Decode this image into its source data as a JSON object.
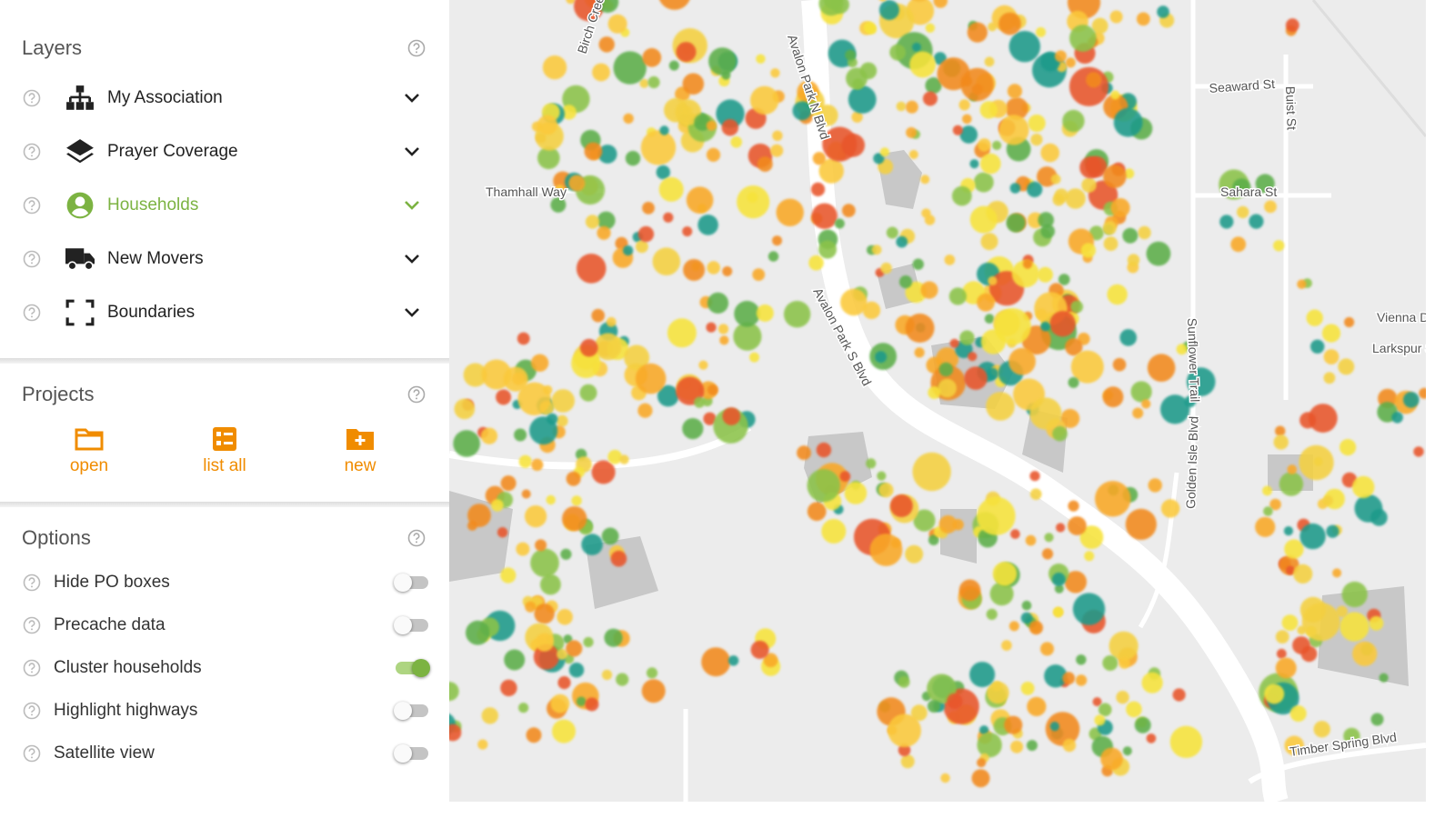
{
  "layers": {
    "title": "Layers",
    "items": [
      {
        "label": "My Association",
        "active": false
      },
      {
        "label": "Prayer Coverage",
        "active": false
      },
      {
        "label": "Households",
        "active": true
      },
      {
        "label": "New Movers",
        "active": false
      },
      {
        "label": "Boundaries",
        "active": false
      }
    ]
  },
  "projects": {
    "title": "Projects",
    "actions": [
      "open",
      "list all",
      "new"
    ]
  },
  "options": {
    "title": "Options",
    "items": [
      {
        "label": "Hide PO boxes",
        "on": false
      },
      {
        "label": "Precache data",
        "on": false
      },
      {
        "label": "Cluster households",
        "on": true
      },
      {
        "label": "Highlight highways",
        "on": false
      },
      {
        "label": "Satellite view",
        "on": false
      }
    ]
  },
  "map": {
    "street_labels": [
      "Thamhall Way",
      "Avalon Park N Blvd",
      "Avalon Park S Blvd",
      "Golden Isle Blvd",
      "Timber Spring Blvd",
      "Seaward St",
      "Sahara St",
      "Vienna Dr",
      "Larkspur St",
      "Sunflower Trail",
      "Birch Creek",
      "Buist St"
    ]
  }
}
